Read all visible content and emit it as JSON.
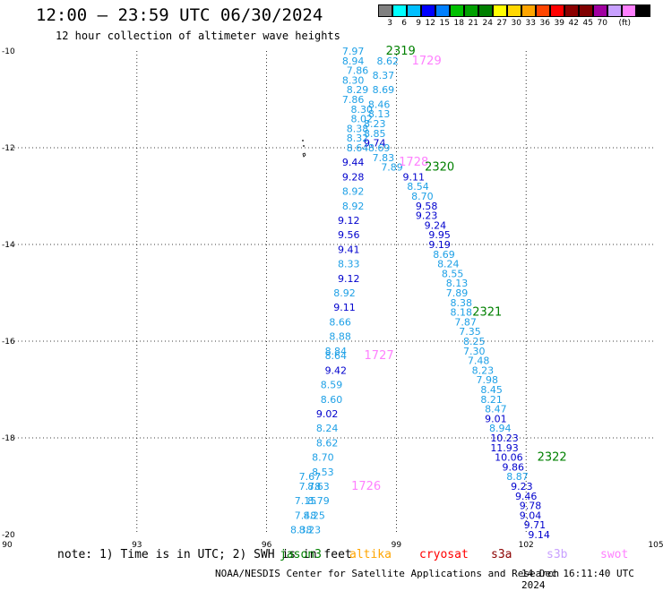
{
  "title": "12:00 — 23:59 UTC 06/30/2024",
  "subtitle": "12 hour collection of altimeter wave heights",
  "note": "note: 1) Time is in UTC; 2) SWH is in feet",
  "footer": "NOAA/NESDIS Center for Satellite Applications and Research",
  "footer_time": "14 Dec 16:11:40 UTC 2024",
  "legend": {
    "colors": [
      "#808080",
      "#00ffff",
      "#00bfff",
      "#0000ff",
      "#0080ff",
      "#00c000",
      "#00a000",
      "#008000",
      "#ffff00",
      "#ffd700",
      "#ffa500",
      "#ff4500",
      "#ff0000",
      "#8b0000",
      "#800000",
      "#a000a0",
      "#c8a0ff",
      "#ff80ff",
      "#000000"
    ],
    "labels": [
      "3",
      "6",
      "9",
      "12",
      "15",
      "18",
      "21",
      "24",
      "27",
      "30",
      "33",
      "36",
      "39",
      "42",
      "45",
      "70",
      "(ft)"
    ]
  },
  "satellites": [
    {
      "name": "jason3",
      "color": "#008000"
    },
    {
      "name": "altika",
      "color": "#ffa500"
    },
    {
      "name": "cryosat",
      "color": "#ff0000"
    },
    {
      "name": "s3a",
      "color": "#8b0000"
    },
    {
      "name": "s3b",
      "color": "#c8a0ff"
    },
    {
      "name": "swot",
      "color": "#ff80ff"
    }
  ],
  "chart_data": {
    "type": "scatter",
    "xlim": [
      90,
      105
    ],
    "ylim": [
      -20,
      -10
    ],
    "xticks": [
      "90",
      "93",
      "96",
      "99",
      "102",
      "105"
    ],
    "yticks": [
      "-10",
      "-12",
      "-14",
      "-16",
      "-18",
      "-20"
    ],
    "grid": true,
    "passes": [
      {
        "label": "2319",
        "label_color": "#008000",
        "label_lon": 99.1,
        "label_lat": -10.0,
        "points": [
          {
            "lon": 98.0,
            "lat": -10.0,
            "v": "7.97"
          },
          {
            "lon": 98.0,
            "lat": -10.2,
            "v": "8.94"
          },
          {
            "lon": 98.1,
            "lat": -10.4,
            "v": "7.86"
          },
          {
            "lon": 98.0,
            "lat": -10.6,
            "v": "8.30"
          },
          {
            "lon": 98.1,
            "lat": -10.8,
            "v": "8.29"
          },
          {
            "lon": 98.0,
            "lat": -11.0,
            "v": "7.86"
          },
          {
            "lon": 98.2,
            "lat": -11.2,
            "v": "8.30"
          },
          {
            "lon": 98.2,
            "lat": -11.4,
            "v": "8.02"
          },
          {
            "lon": 98.1,
            "lat": -11.6,
            "v": "8.38"
          },
          {
            "lon": 98.1,
            "lat": -11.8,
            "v": "8.32"
          },
          {
            "lon": 98.1,
            "lat": -12.0,
            "v": "8.64"
          }
        ]
      },
      {
        "label": "1729",
        "label_color": "#ff80ff",
        "label_lon": 99.7,
        "label_lat": -10.2,
        "points": [
          {
            "lon": 98.8,
            "lat": -10.2,
            "v": "8.62"
          },
          {
            "lon": 98.7,
            "lat": -10.5,
            "v": "8.37"
          },
          {
            "lon": 98.7,
            "lat": -10.8,
            "v": "8.69"
          },
          {
            "lon": 98.6,
            "lat": -11.1,
            "v": "8.46"
          },
          {
            "lon": 98.6,
            "lat": -11.3,
            "v": "8.13"
          },
          {
            "lon": 98.5,
            "lat": -11.5,
            "v": "8.23"
          },
          {
            "lon": 98.5,
            "lat": -11.7,
            "v": "8.85"
          },
          {
            "lon": 98.5,
            "lat": -11.9,
            "v": "9.74"
          }
        ]
      },
      {
        "label": "1728",
        "label_color": "#ff80ff",
        "label_lon": 99.4,
        "label_lat": -12.3,
        "points": [
          {
            "lon": 98.6,
            "lat": -12.0,
            "v": "8.69"
          },
          {
            "lon": 98.7,
            "lat": -12.2,
            "v": "7.83"
          },
          {
            "lon": 98.9,
            "lat": -12.4,
            "v": "7.89"
          }
        ]
      },
      {
        "label": "2320",
        "label_color": "#008000",
        "label_lon": 100.0,
        "label_lat": -12.4,
        "points": [
          {
            "lon": 98.0,
            "lat": -12.3,
            "v": "9.44"
          },
          {
            "lon": 98.0,
            "lat": -12.6,
            "v": "9.28"
          },
          {
            "lon": 98.0,
            "lat": -12.9,
            "v": "8.92"
          },
          {
            "lon": 98.0,
            "lat": -13.2,
            "v": "8.92"
          },
          {
            "lon": 97.9,
            "lat": -13.5,
            "v": "9.12"
          },
          {
            "lon": 97.9,
            "lat": -13.8,
            "v": "9.56"
          },
          {
            "lon": 97.9,
            "lat": -14.1,
            "v": "9.41"
          },
          {
            "lon": 97.9,
            "lat": -14.4,
            "v": "8.33"
          },
          {
            "lon": 97.9,
            "lat": -14.7,
            "v": "9.12"
          },
          {
            "lon": 97.8,
            "lat": -15.0,
            "v": "8.92"
          },
          {
            "lon": 97.8,
            "lat": -15.3,
            "v": "9.11"
          },
          {
            "lon": 97.7,
            "lat": -15.6,
            "v": "8.66"
          },
          {
            "lon": 97.7,
            "lat": -15.9,
            "v": "8.88"
          },
          {
            "lon": 97.6,
            "lat": -16.2,
            "v": "8.84"
          }
        ]
      },
      {
        "label": "1727",
        "label_color": "#ff80ff",
        "label_lon": 98.6,
        "label_lat": -16.3,
        "points": [
          {
            "lon": 97.6,
            "lat": -16.3,
            "v": "8.64"
          },
          {
            "lon": 97.6,
            "lat": -16.6,
            "v": "9.42"
          },
          {
            "lon": 97.5,
            "lat": -16.9,
            "v": "8.59"
          },
          {
            "lon": 97.5,
            "lat": -17.2,
            "v": "8.60"
          },
          {
            "lon": 97.4,
            "lat": -17.5,
            "v": "9.02"
          },
          {
            "lon": 97.4,
            "lat": -17.8,
            "v": "8.24"
          },
          {
            "lon": 97.4,
            "lat": -18.1,
            "v": "8.62"
          },
          {
            "lon": 97.3,
            "lat": -18.4,
            "v": "8.70"
          },
          {
            "lon": 97.3,
            "lat": -18.7,
            "v": "8.53"
          },
          {
            "lon": 97.2,
            "lat": -19.0,
            "v": "8.63"
          },
          {
            "lon": 97.2,
            "lat": -19.3,
            "v": "8.79"
          },
          {
            "lon": 97.1,
            "lat": -19.6,
            "v": "8.25"
          },
          {
            "lon": 97.0,
            "lat": -19.9,
            "v": "8.23"
          }
        ]
      },
      {
        "label": "1726",
        "label_color": "#ff80ff",
        "label_lon": 98.3,
        "label_lat": -19.0,
        "points": [
          {
            "lon": 97.0,
            "lat": -18.8,
            "v": "7.67"
          },
          {
            "lon": 97.0,
            "lat": -19.0,
            "v": "7.78"
          },
          {
            "lon": 96.9,
            "lat": -19.3,
            "v": "7.15"
          },
          {
            "lon": 96.9,
            "lat": -19.6,
            "v": "7.48"
          },
          {
            "lon": 96.8,
            "lat": -19.9,
            "v": "8.38"
          }
        ]
      },
      {
        "label": "2321",
        "label_color": "#008000",
        "label_lon": 101.1,
        "label_lat": -15.4,
        "points": [
          {
            "lon": 99.4,
            "lat": -12.6,
            "v": "9.11"
          },
          {
            "lon": 99.5,
            "lat": -12.8,
            "v": "8.54"
          },
          {
            "lon": 99.6,
            "lat": -13.0,
            "v": "8.70"
          },
          {
            "lon": 99.7,
            "lat": -13.2,
            "v": "9.58"
          },
          {
            "lon": 99.7,
            "lat": -13.4,
            "v": "9.23"
          },
          {
            "lon": 99.9,
            "lat": -13.6,
            "v": "9.24"
          },
          {
            "lon": 100.0,
            "lat": -13.8,
            "v": "9.95"
          },
          {
            "lon": 100.0,
            "lat": -14.0,
            "v": "9.19"
          },
          {
            "lon": 100.1,
            "lat": -14.2,
            "v": "8.69"
          },
          {
            "lon": 100.2,
            "lat": -14.4,
            "v": "8.24"
          },
          {
            "lon": 100.3,
            "lat": -14.6,
            "v": "8.55"
          },
          {
            "lon": 100.4,
            "lat": -14.8,
            "v": "8.13"
          },
          {
            "lon": 100.4,
            "lat": -15.0,
            "v": "7.89"
          },
          {
            "lon": 100.5,
            "lat": -15.2,
            "v": "8.38"
          },
          {
            "lon": 100.5,
            "lat": -15.4,
            "v": "8.18"
          },
          {
            "lon": 100.6,
            "lat": -15.6,
            "v": "7.87"
          },
          {
            "lon": 100.7,
            "lat": -15.8,
            "v": "7.35"
          },
          {
            "lon": 100.8,
            "lat": -16.0,
            "v": "8.25"
          },
          {
            "lon": 100.8,
            "lat": -16.2,
            "v": "7.30"
          },
          {
            "lon": 100.9,
            "lat": -16.4,
            "v": "7.48"
          },
          {
            "lon": 101.0,
            "lat": -16.6,
            "v": "8.23"
          },
          {
            "lon": 101.1,
            "lat": -16.8,
            "v": "7.98"
          },
          {
            "lon": 101.2,
            "lat": -17.0,
            "v": "8.45"
          },
          {
            "lon": 101.2,
            "lat": -17.2,
            "v": "8.21"
          },
          {
            "lon": 101.3,
            "lat": -17.4,
            "v": "8.47"
          },
          {
            "lon": 101.3,
            "lat": -17.6,
            "v": "9.01"
          },
          {
            "lon": 101.4,
            "lat": -17.8,
            "v": "8.94"
          },
          {
            "lon": 101.5,
            "lat": -18.0,
            "v": "10.23"
          }
        ]
      },
      {
        "label": "2322",
        "label_color": "#008000",
        "label_lon": 102.6,
        "label_lat": -18.4,
        "points": [
          {
            "lon": 101.5,
            "lat": -18.2,
            "v": "11.93"
          },
          {
            "lon": 101.6,
            "lat": -18.4,
            "v": "10.06"
          },
          {
            "lon": 101.7,
            "lat": -18.6,
            "v": "9.86"
          },
          {
            "lon": 101.8,
            "lat": -18.8,
            "v": "8.87"
          },
          {
            "lon": 101.9,
            "lat": -19.0,
            "v": "9.23"
          },
          {
            "lon": 102.0,
            "lat": -19.2,
            "v": "9.46"
          },
          {
            "lon": 102.1,
            "lat": -19.4,
            "v": "9.78"
          },
          {
            "lon": 102.1,
            "lat": -19.6,
            "v": "9.04"
          },
          {
            "lon": 102.2,
            "lat": -19.8,
            "v": "9.71"
          },
          {
            "lon": 102.3,
            "lat": -20.0,
            "v": "9.14"
          }
        ]
      }
    ]
  }
}
